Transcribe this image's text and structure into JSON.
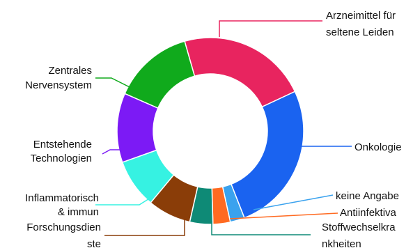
{
  "chart_data": {
    "type": "pie",
    "donut": true,
    "title": "",
    "unit": "percent",
    "series": [
      {
        "name": "Arzneimittel für seltene Leiden",
        "value": 22.5,
        "color": "#E8245F",
        "label_lines": [
          "Arzneimittel für",
          "seltene Leiden"
        ]
      },
      {
        "name": "Onkologie",
        "value": 26.0,
        "color": "#1A63F0",
        "label_lines": [
          "Onkologie"
        ]
      },
      {
        "name": "keine Angabe",
        "value": 2.5,
        "color": "#3AA2EE",
        "label_lines": [
          "keine Angabe"
        ]
      },
      {
        "name": "Antiinfektiva",
        "value": 3.0,
        "color": "#FF6A21",
        "label_lines": [
          "Antiinfektiva"
        ]
      },
      {
        "name": "Stoffwechselkrankheiten",
        "value": 4.0,
        "color": "#0E8A76",
        "label_lines": [
          "Stoffwechselkra",
          "nkheiten"
        ]
      },
      {
        "name": "Forschungsdienste",
        "value": 7.5,
        "color": "#8A3D08",
        "label_lines": [
          "Forschungsdien",
          "ste"
        ]
      },
      {
        "name": "Inflammatorisch & immun",
        "value": 8.5,
        "color": "#36F2E2",
        "label_lines": [
          "Inflammatorisch",
          "& immun"
        ]
      },
      {
        "name": "Entstehende Technologien",
        "value": 12.0,
        "color": "#7C1AF5",
        "label_lines": [
          "Entstehende",
          "Technologien"
        ]
      },
      {
        "name": "Zentrales Nervensystem",
        "value": 14.0,
        "color": "#10AA1C",
        "label_lines": [
          "Zentrales",
          "Nervensystem"
        ]
      }
    ]
  }
}
